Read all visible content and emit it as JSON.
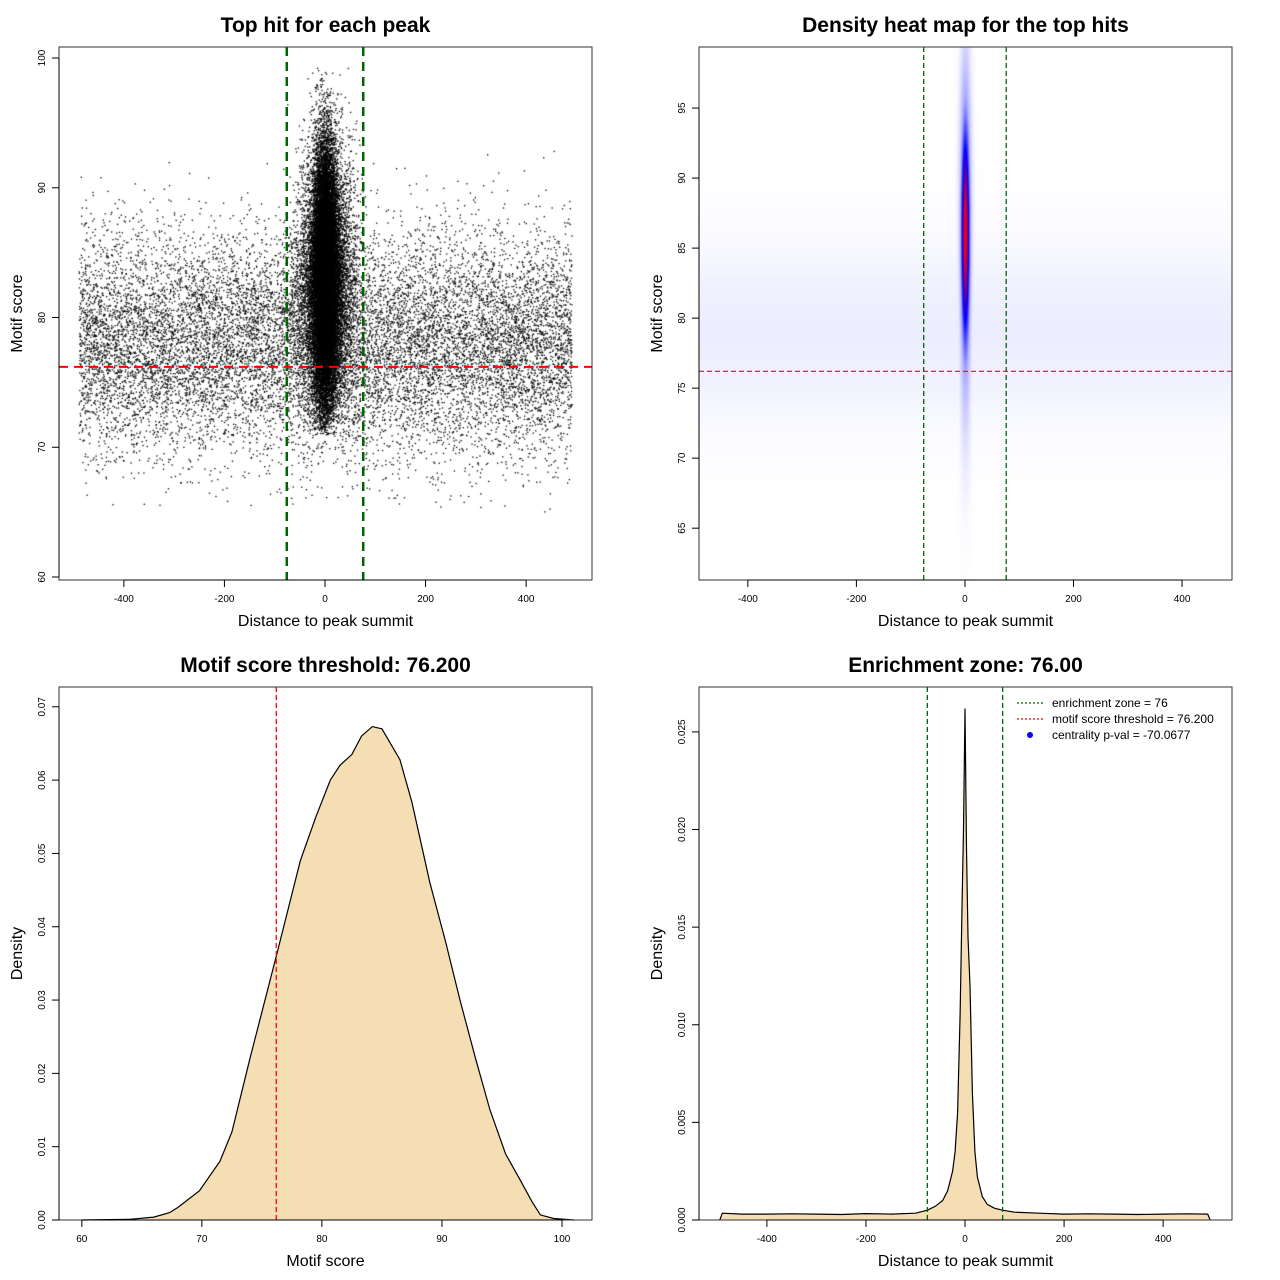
{
  "chart_data": [
    {
      "type": "scatter",
      "title": "Top hit for each peak",
      "xlabel": "Distance to peak summit",
      "ylabel": "Motif score",
      "xlim": [
        -529,
        531
      ],
      "ylim": [
        59.77,
        100.85
      ],
      "xticks": [
        -400,
        -200,
        0,
        200,
        400
      ],
      "yticks": [
        60,
        70,
        80,
        90,
        100
      ],
      "vlines": {
        "values": [
          -76,
          76
        ],
        "color": "#006400",
        "style": "dashed"
      },
      "hlines": {
        "values": [
          76.2
        ],
        "color": "#ff0000",
        "style": "dashed"
      },
      "point_color": "#000000"
    },
    {
      "type": "heatmap",
      "title": "Density heat map for the top hits",
      "xlabel": "Distance to peak summit",
      "ylabel": "Motif score",
      "xlim": [
        -490,
        492
      ],
      "ylim": [
        61.3,
        99.36
      ],
      "xticks": [
        -400,
        -200,
        0,
        200,
        400
      ],
      "yticks": [
        65,
        70,
        75,
        80,
        85,
        90,
        95
      ],
      "vlines": {
        "values": [
          -76,
          76
        ],
        "color": "#006400",
        "style": "dashed"
      },
      "hlines": {
        "values": [
          76.2
        ],
        "color": "#a52a2a",
        "style": "dashed"
      },
      "colors": [
        "#ffffff",
        "#0000ff",
        "#ff0000"
      ],
      "peak": {
        "x": 0,
        "y": 86
      }
    },
    {
      "type": "area",
      "title": "Motif score threshold: 76.200",
      "xlabel": "Motif score",
      "ylabel": "Density",
      "xlim": [
        58.1,
        102.5
      ],
      "ylim": [
        0,
        0.0727
      ],
      "xticks": [
        60,
        70,
        80,
        90,
        100
      ],
      "yticks": [
        "0.00",
        "0.01",
        "0.02",
        "0.03",
        "0.04",
        "0.05",
        "0.06",
        "0.07"
      ],
      "vlines": {
        "values": [
          76.2
        ],
        "color": "#ff0000",
        "style": "dashed"
      },
      "fill": "#f5deb3",
      "x": [
        60,
        64,
        66,
        67.3,
        68,
        69.8,
        71.5,
        72.5,
        74,
        76.2,
        78.2,
        79.5,
        80.7,
        81.5,
        82.5,
        83.3,
        84.2,
        85,
        86.5,
        87.5,
        89,
        90.3,
        91.5,
        92.8,
        94,
        95.3,
        96.5,
        97.5,
        98.2,
        99.3,
        101
      ],
      "y": [
        0,
        0.0001,
        0.0004,
        0.001,
        0.0017,
        0.004,
        0.008,
        0.012,
        0.022,
        0.036,
        0.049,
        0.055,
        0.06,
        0.062,
        0.0635,
        0.066,
        0.0673,
        0.067,
        0.0628,
        0.057,
        0.046,
        0.038,
        0.03,
        0.022,
        0.015,
        0.009,
        0.0055,
        0.0025,
        0.0007,
        0.0002,
        0
      ]
    },
    {
      "type": "area",
      "title": "Enrichment zone: 76.00",
      "xlabel": "Distance to peak summit",
      "ylabel": "Density",
      "xlim": [
        -537,
        539
      ],
      "ylim": [
        0,
        0.0273
      ],
      "xticks": [
        -400,
        -200,
        0,
        200,
        400
      ],
      "yticks": [
        "0.000",
        "0.005",
        "0.010",
        "0.015",
        "0.020",
        "0.025"
      ],
      "vlines": {
        "values": [
          -76,
          76
        ],
        "color": "#006400",
        "style": "dashed"
      },
      "fill": "#f5deb3",
      "x": [
        -495,
        -490,
        -450,
        -400,
        -350,
        -300,
        -250,
        -200,
        -150,
        -100,
        -76,
        -60,
        -45,
        -35,
        -25,
        -20,
        -15,
        -10,
        -6,
        -3,
        0,
        3,
        6,
        10,
        15,
        20,
        25,
        35,
        45,
        60,
        76,
        100,
        150,
        200,
        250,
        300,
        350,
        400,
        450,
        490,
        495
      ],
      "y": [
        0,
        0.00035,
        0.0003,
        0.0003,
        0.00032,
        0.0003,
        0.00028,
        0.00033,
        0.0003,
        0.00035,
        0.0005,
        0.0007,
        0.001,
        0.0015,
        0.0025,
        0.0035,
        0.0055,
        0.0105,
        0.016,
        0.02,
        0.0262,
        0.019,
        0.0145,
        0.012,
        0.0065,
        0.0035,
        0.0022,
        0.0012,
        0.0008,
        0.0006,
        0.0005,
        0.0004,
        0.00035,
        0.0003,
        0.00032,
        0.0003,
        0.00028,
        0.0003,
        0.00032,
        0.0003,
        0
      ],
      "legend": [
        {
          "label": "enrichment zone = 76",
          "color": "#006400",
          "symbol": "dotted-line"
        },
        {
          "label": "motif score threshold = 76.200",
          "color": "#ff0000",
          "symbol": "dotted-line"
        },
        {
          "label": "centrality p-val = -70.0677",
          "color": "#0000ff",
          "symbol": "dot"
        }
      ],
      "legend_position": "top-right"
    }
  ]
}
